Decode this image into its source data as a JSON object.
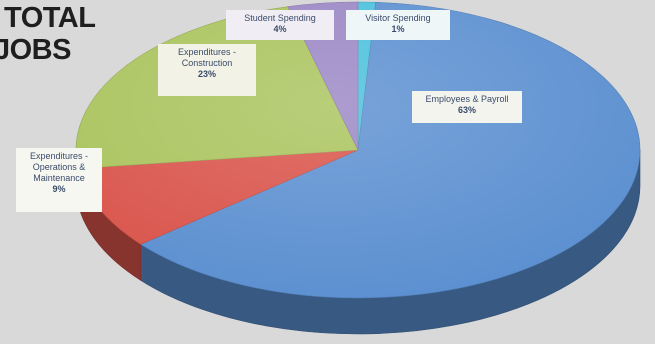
{
  "chart_data": {
    "type": "pie",
    "title": "TOTAL JOBS",
    "title_lines": [
      "TOTAL",
      "JOBS"
    ],
    "three_d": true,
    "background": "#d9d9d9",
    "slices": [
      {
        "label": "Employees & Payroll",
        "value": 63,
        "display": "63%",
        "color": "#5b8fd0"
      },
      {
        "label": "Expenditures - Operations & Maintenance",
        "value": 9,
        "display": "9%",
        "color": "#d9534a"
      },
      {
        "label": "Expenditures - Construction",
        "value": 23,
        "display": "23%",
        "color": "#a9c35c"
      },
      {
        "label": "Student Spending",
        "value": 4,
        "display": "4%",
        "color": "#9a86c4"
      },
      {
        "label": "Visitor Spending",
        "value": 1,
        "display": "1%",
        "color": "#49c0dc"
      }
    ]
  },
  "labels": {
    "employees": {
      "name": "Employees & Payroll",
      "pct": "63%"
    },
    "operations": {
      "name": "Expenditures -\nOperations &\nMaintenance",
      "pct": "9%"
    },
    "construction": {
      "name": "Expenditures -\nConstruction",
      "pct": "23%"
    },
    "student": {
      "name": "Student Spending",
      "pct": "4%"
    },
    "visitor": {
      "name": "Visitor Spending",
      "pct": "1%"
    }
  }
}
